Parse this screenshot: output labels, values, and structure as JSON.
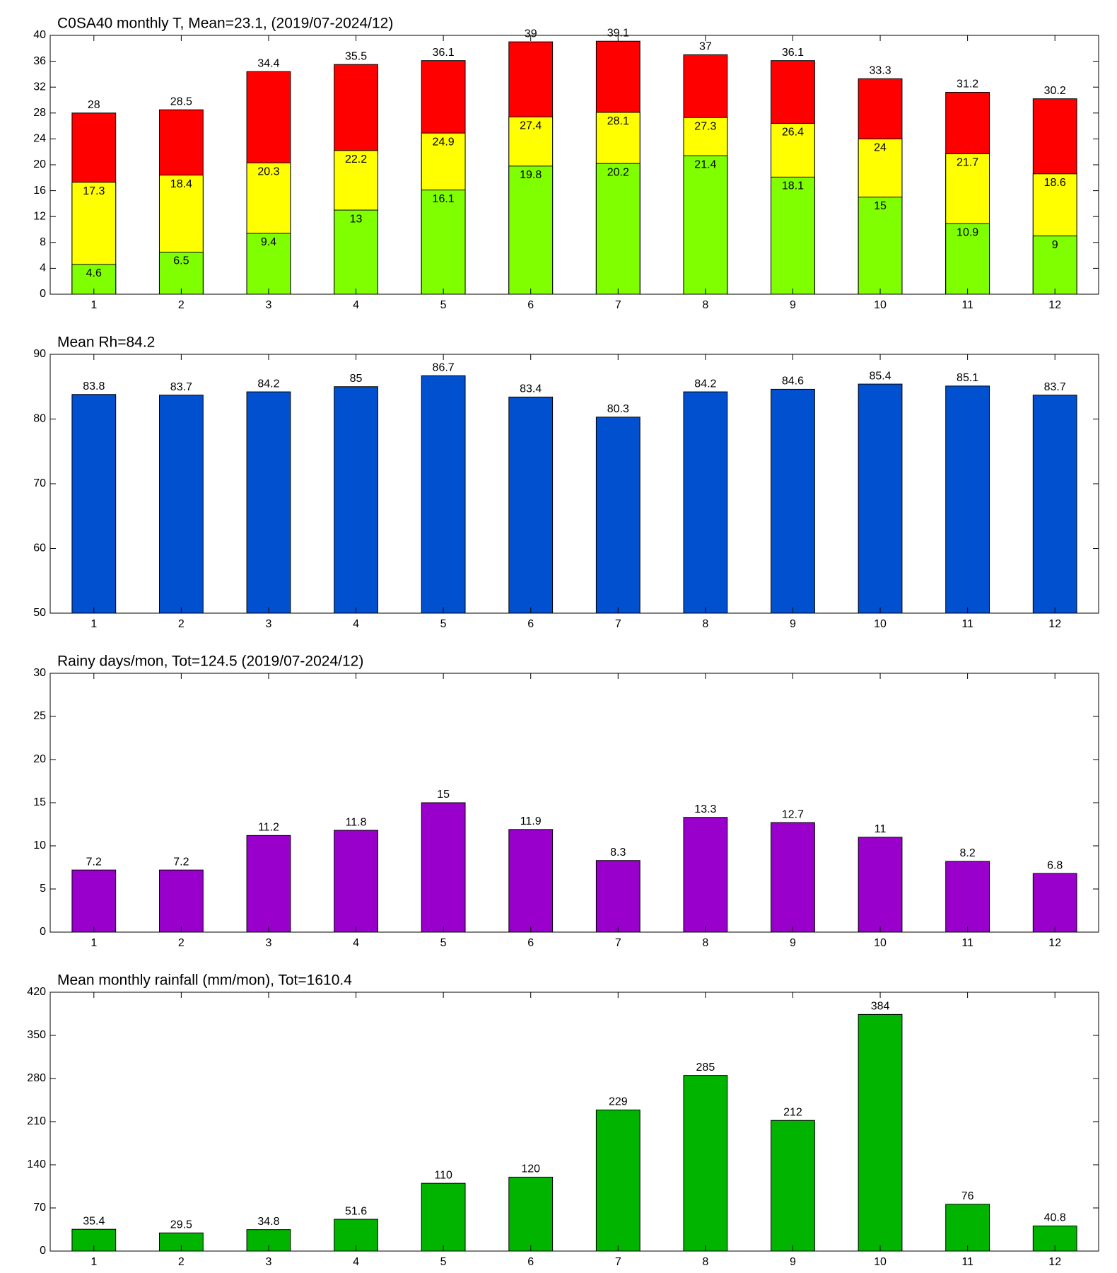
{
  "chart_data": [
    {
      "type": "bar",
      "title": "C0SA40 monthly T, Mean=23.1, (2019/07-2024/12)",
      "categories": [
        "1",
        "2",
        "3",
        "4",
        "5",
        "6",
        "7",
        "8",
        "9",
        "10",
        "11",
        "12"
      ],
      "series": [
        {
          "color": "#ff0000",
          "values": [
            28,
            28.5,
            34.4,
            35.5,
            36.1,
            39,
            39.1,
            37,
            36.1,
            33.3,
            31.2,
            30.2
          ]
        },
        {
          "color": "#ffff00",
          "values": [
            17.3,
            18.4,
            20.3,
            22.2,
            24.9,
            27.4,
            28.1,
            27.3,
            26.4,
            24,
            21.7,
            18.6
          ]
        },
        {
          "color": "#80ff00",
          "values": [
            4.6,
            6.5,
            9.4,
            13,
            16.1,
            19.8,
            20.2,
            21.4,
            18.1,
            15,
            10.9,
            9
          ]
        }
      ],
      "ylim": [
        0,
        40
      ],
      "yticks": [
        0,
        4,
        8,
        12,
        16,
        20,
        24,
        28,
        32,
        36,
        40
      ],
      "grid": false
    },
    {
      "type": "bar",
      "title": "Mean Rh=84.2",
      "categories": [
        "1",
        "2",
        "3",
        "4",
        "5",
        "6",
        "7",
        "8",
        "9",
        "10",
        "11",
        "12"
      ],
      "series": [
        {
          "color": "#0050d0",
          "values": [
            83.8,
            83.7,
            84.2,
            85,
            86.7,
            83.4,
            80.3,
            84.2,
            84.6,
            85.4,
            85.1,
            83.7
          ]
        }
      ],
      "ylim": [
        50,
        90
      ],
      "yticks": [
        50,
        60,
        70,
        80,
        90
      ],
      "grid": false
    },
    {
      "type": "bar",
      "title": "Rainy days/mon, Tot=124.5 (2019/07-2024/12)",
      "categories": [
        "1",
        "2",
        "3",
        "4",
        "5",
        "6",
        "7",
        "8",
        "9",
        "10",
        "11",
        "12"
      ],
      "series": [
        {
          "color": "#9900cc",
          "values": [
            7.2,
            7.2,
            11.2,
            11.8,
            15,
            11.9,
            8.3,
            13.3,
            12.7,
            11,
            8.2,
            6.8
          ]
        }
      ],
      "ylim": [
        0,
        30
      ],
      "yticks": [
        0,
        5,
        10,
        15,
        20,
        25,
        30
      ],
      "grid": false
    },
    {
      "type": "bar",
      "title": "Mean monthly rainfall (mm/mon), Tot=1610.4",
      "categories": [
        "1",
        "2",
        "3",
        "4",
        "5",
        "6",
        "7",
        "8",
        "9",
        "10",
        "11",
        "12"
      ],
      "series": [
        {
          "color": "#00b400",
          "values": [
            35.4,
            29.5,
            34.8,
            51.6,
            110,
            120,
            229,
            285,
            212,
            384,
            76,
            40.8
          ]
        }
      ],
      "ylim": [
        0,
        420
      ],
      "yticks": [
        0,
        70,
        140,
        210,
        280,
        350,
        420
      ],
      "grid": false
    }
  ]
}
